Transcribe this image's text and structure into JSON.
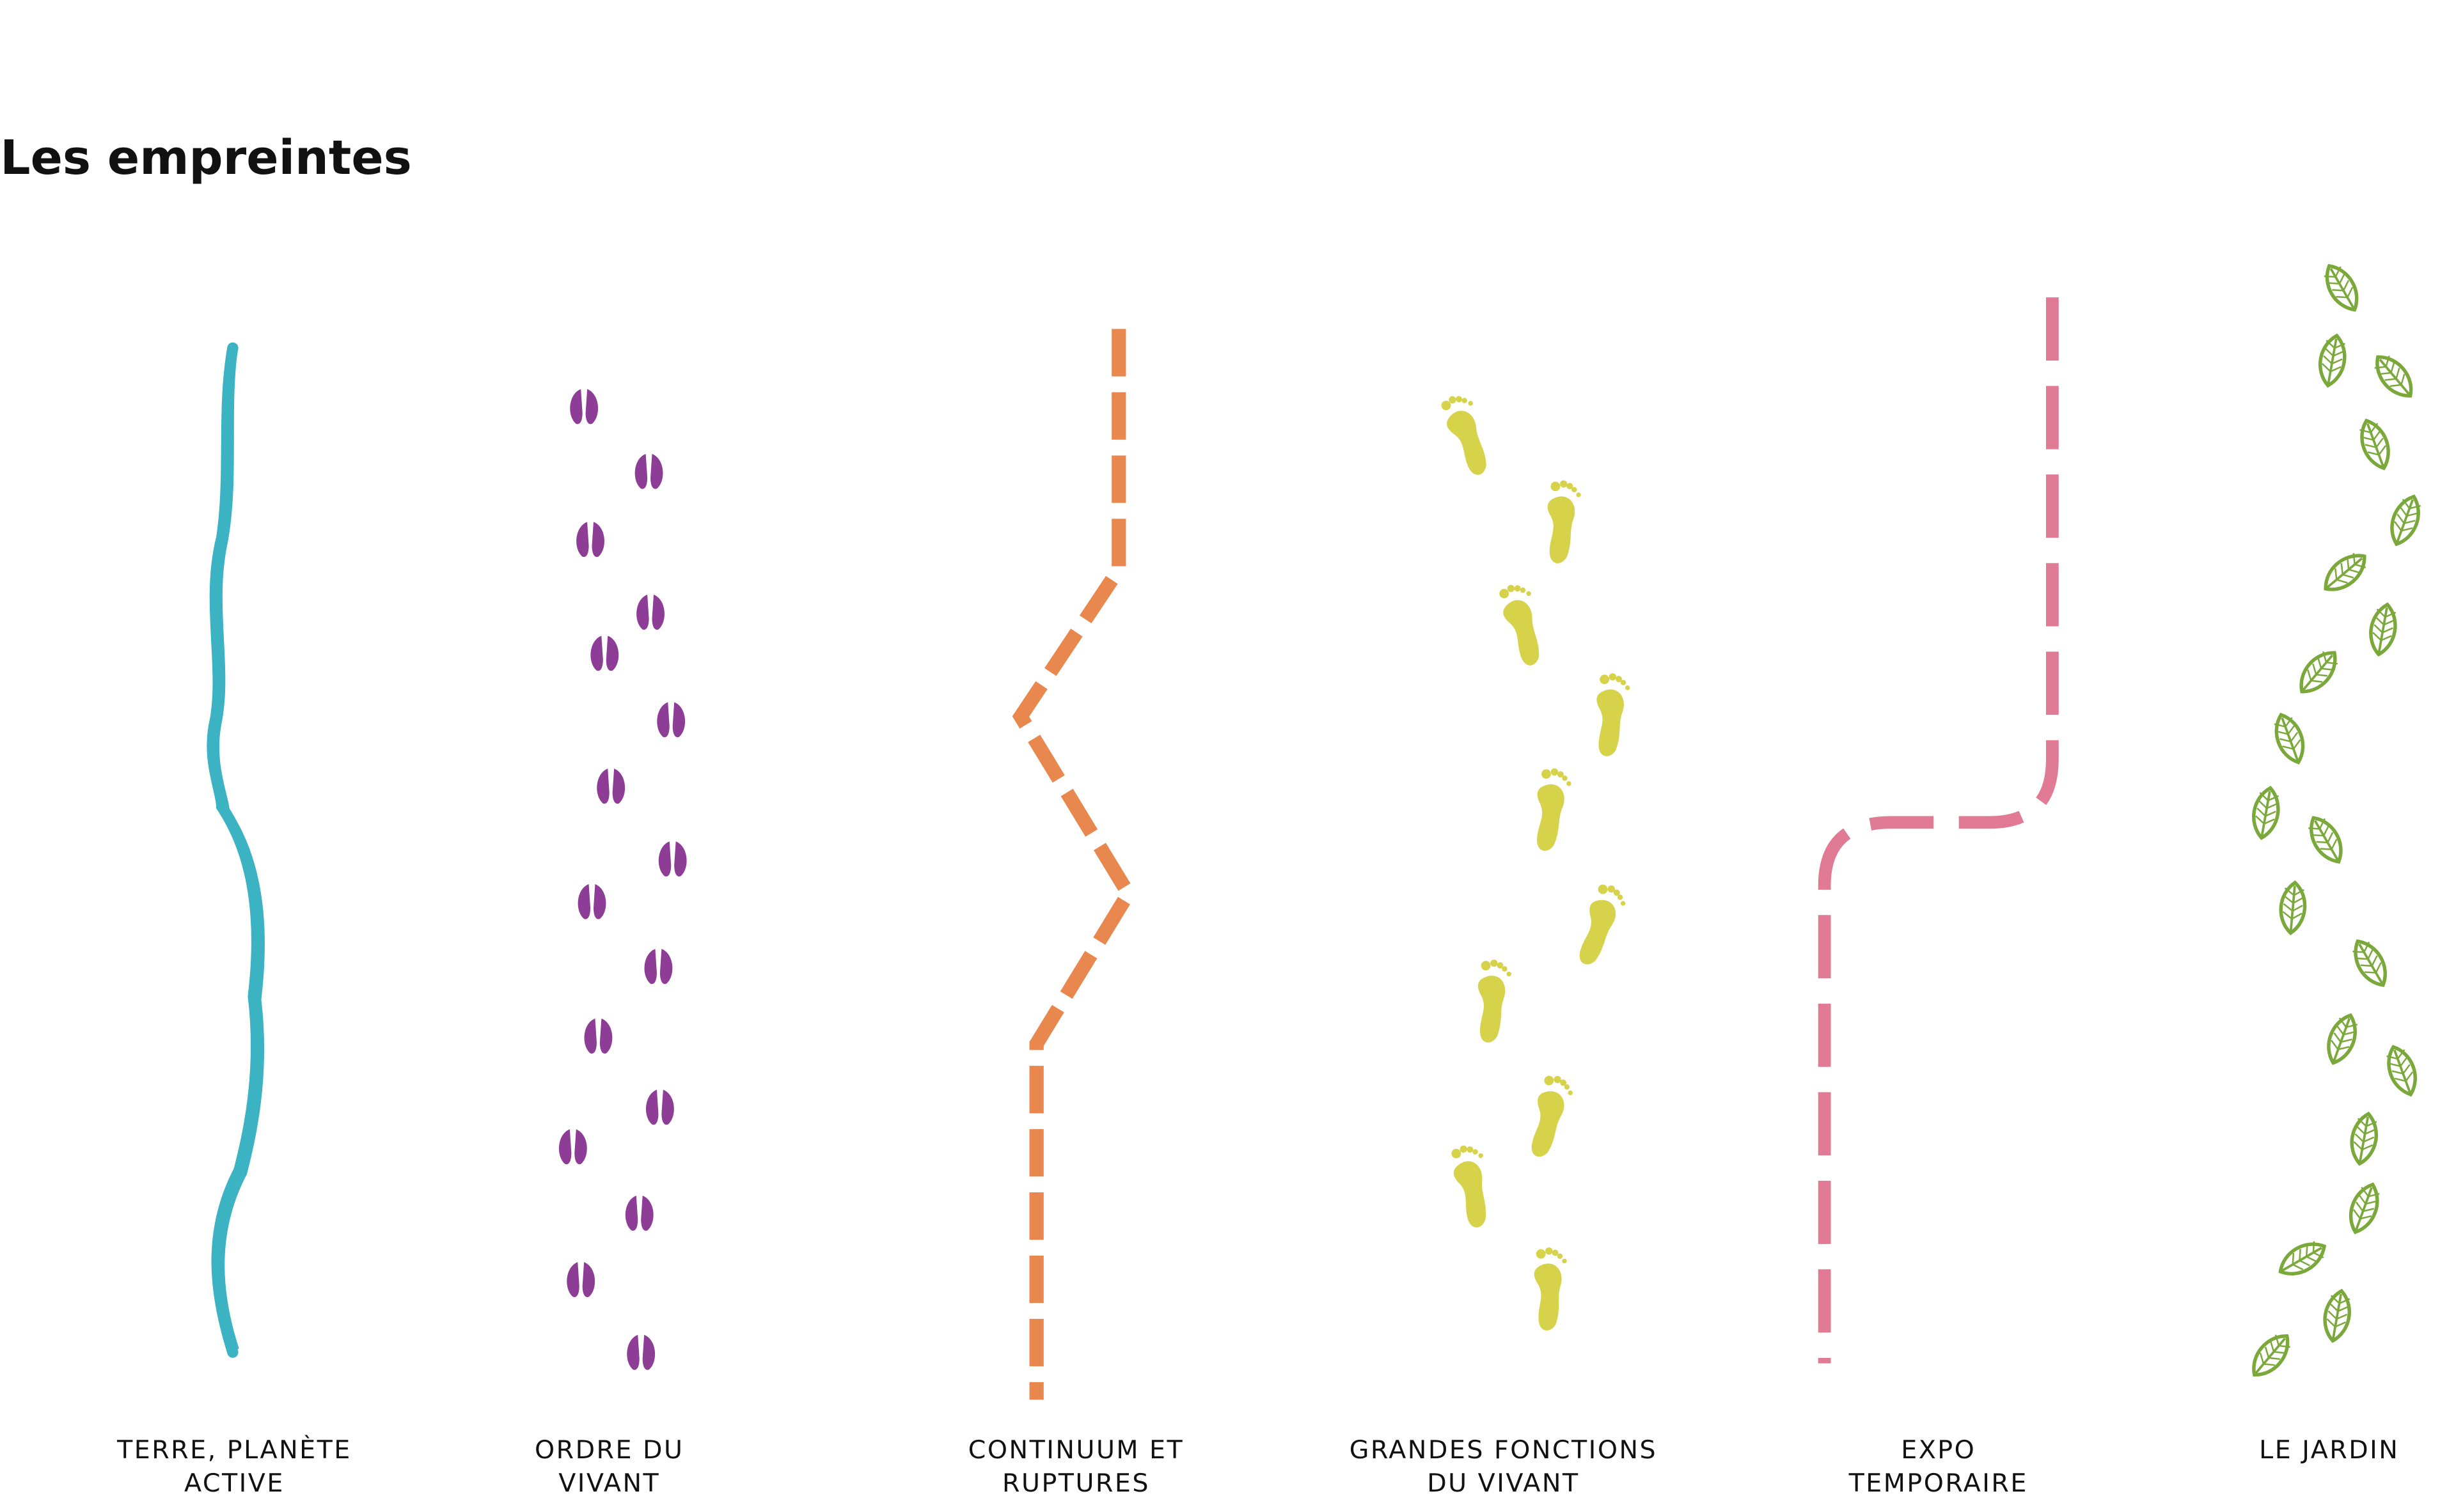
{
  "header": {
    "title": "Les empreintes"
  },
  "columns": [
    {
      "label_lines": [
        "TERRE, PLANÈTE",
        "ACTIVE"
      ]
    },
    {
      "label_lines": [
        "ORDRE DU",
        "VIVANT"
      ]
    },
    {
      "label_lines": [
        "CONTINUUM ET",
        "RUPTURES"
      ]
    },
    {
      "label_lines": [
        "GRANDES FONCTIONS",
        "DU VIVANT"
      ]
    },
    {
      "label_lines": [
        "EXPO",
        "TEMPORAIRE"
      ]
    },
    {
      "label_lines": [
        "LE JARDIN"
      ]
    }
  ]
}
